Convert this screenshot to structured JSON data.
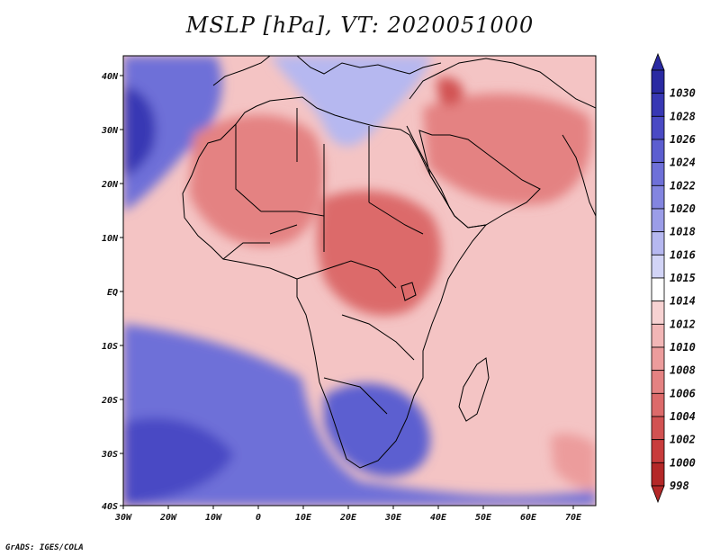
{
  "title": "MSLP [hPa], VT: 2020051000",
  "credit": "GrADS: IGES/COLA",
  "x_axis_labels": [
    "30W",
    "20W",
    "10W",
    "0",
    "10E",
    "20E",
    "30E",
    "40E",
    "50E",
    "60E",
    "70E"
  ],
  "y_axis_labels": [
    "40N",
    "30N",
    "20N",
    "10N",
    "EQ",
    "10S",
    "20S",
    "30S",
    "40S"
  ],
  "colorbar": {
    "levels": [
      "1030",
      "1028",
      "1026",
      "1024",
      "1022",
      "1020",
      "1018",
      "1016",
      "1015",
      "1014",
      "1012",
      "1010",
      "1008",
      "1006",
      "1004",
      "1002",
      "1000",
      "998"
    ],
    "colors": [
      "#2a2aa2",
      "#3838b4",
      "#4a4ac4",
      "#5c5ed0",
      "#6e70d8",
      "#8385e0",
      "#9b9de8",
      "#b6b8f0",
      "#d2d4f6",
      "#ffffff",
      "#f7d2d2",
      "#f2b6b6",
      "#ec9c9c",
      "#e48282",
      "#dc6a6a",
      "#d25252",
      "#c83c3c",
      "#b42828"
    ]
  },
  "map": {
    "background": "#f4c4c4",
    "regions": [
      {
        "name": "high-southwest-atlantic",
        "color": "#6e70d8"
      },
      {
        "name": "high-south-atlantic-core",
        "color": "#4a4ac4"
      },
      {
        "name": "high-north-atlantic",
        "color": "#6e70d8"
      },
      {
        "name": "high-north-atlantic-core",
        "color": "#3838b4"
      },
      {
        "name": "high-southern-africa",
        "color": "#5c5ed0"
      },
      {
        "name": "high-mediterranean",
        "color": "#b6b8f0"
      },
      {
        "name": "low-sahara",
        "color": "#e48282"
      },
      {
        "name": "low-arabia",
        "color": "#e48282"
      },
      {
        "name": "low-iraq",
        "color": "#d25252"
      },
      {
        "name": "low-central-africa",
        "color": "#dc6a6a"
      },
      {
        "name": "low-southeast-corner",
        "color": "#ec9c9c"
      }
    ]
  }
}
